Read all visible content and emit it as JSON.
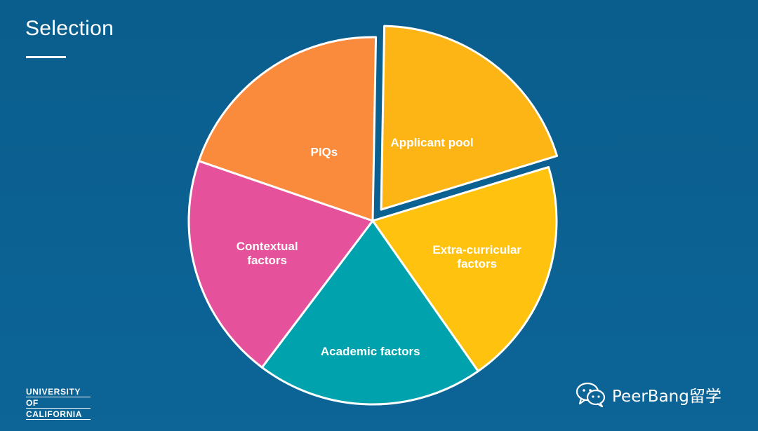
{
  "slide": {
    "title": "Selection"
  },
  "chart_data": {
    "type": "pie",
    "slices": [
      {
        "label": "Applicant pool",
        "value": 20,
        "color": "#fdb515",
        "exploded": true
      },
      {
        "label": "Extra-curricular factors",
        "value": 20,
        "color": "#ffc20e",
        "exploded": false
      },
      {
        "label": "Academic factors",
        "value": 20,
        "color": "#00a3ad",
        "exploded": false
      },
      {
        "label": "Contextual factors",
        "value": 20,
        "color": "#e6519b",
        "exploded": false
      },
      {
        "label": "PIQs",
        "value": 20,
        "color": "#fa8a3c",
        "exploded": false
      }
    ]
  },
  "logo": {
    "lines": [
      "UNIVERSITY",
      "OF",
      "CALIFORNIA"
    ]
  },
  "watermark": {
    "text": "PeerBang留学",
    "icon": "wechat-icon"
  }
}
